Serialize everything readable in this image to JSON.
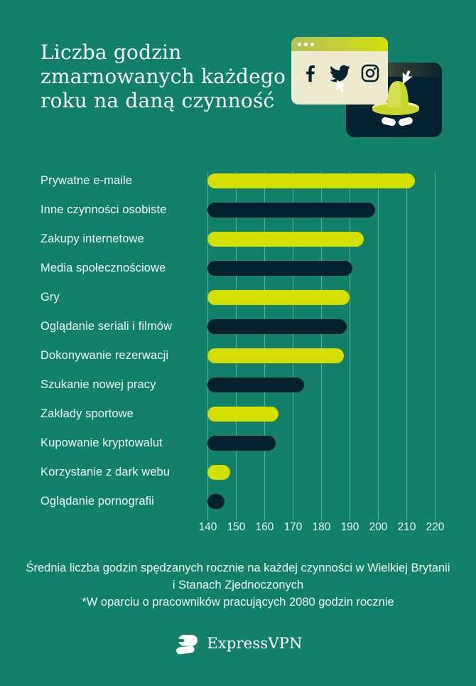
{
  "page": {
    "background_color": "#13816A",
    "bar_color_lime": "#D2DF00",
    "bar_color_navy": "#04202E"
  },
  "header": {
    "title": "Liczba godzin zmarnowanych każdego roku na daną czynność"
  },
  "illustration": {
    "front_window_icons": [
      "facebook-icon",
      "twitter-icon",
      "instagram-icon"
    ],
    "spy": "incognito-spy-hat-with-eyes",
    "cursors": [
      "cursor-arrow-up-left",
      "cursor-arrow-down-left"
    ],
    "front_window_color": "#EDEACF",
    "back_window_color": "#05202E"
  },
  "chart_data": {
    "type": "bar",
    "orientation": "horizontal",
    "title": "Liczba godzin zmarnowanych każdego roku na daną czynność",
    "categories": [
      "Prywatne e-maile",
      "Inne czynności osobiste",
      "Zakupy internetowe",
      "Media społecznościowe",
      "Gry",
      "Oglądanie seriali i filmów",
      "Dokonywanie rezerwacji",
      "Szukanie nowej pracy",
      "Zakłady sportowe",
      "Kupowanie kryptowalut",
      "Korzystanie z dark webu",
      "Oglądanie pornografii"
    ],
    "values": [
      213,
      199,
      195,
      191,
      190,
      189,
      188,
      174,
      165,
      164,
      148,
      146
    ],
    "bar_colors": [
      "#D2DF00",
      "#04202E",
      "#D2DF00",
      "#04202E",
      "#D2DF00",
      "#04202E",
      "#D2DF00",
      "#04202E",
      "#D2DF00",
      "#04202E",
      "#D2DF00",
      "#04202E"
    ],
    "xlim": [
      140,
      220
    ],
    "x_ticks": [
      140,
      150,
      160,
      170,
      180,
      190,
      200,
      210,
      220
    ],
    "grid": true,
    "legend": false,
    "xlabel": "",
    "ylabel": ""
  },
  "footer": {
    "line1": "Średnia liczba godzin spędzanych rocznie na każdej czynności w Wielkiej Brytanii i Stanach Zjednoczonych",
    "line2": "*W oparciu o pracowników pracujących 2080 godzin rocznie"
  },
  "logo": {
    "brand": "ExpressVPN"
  }
}
